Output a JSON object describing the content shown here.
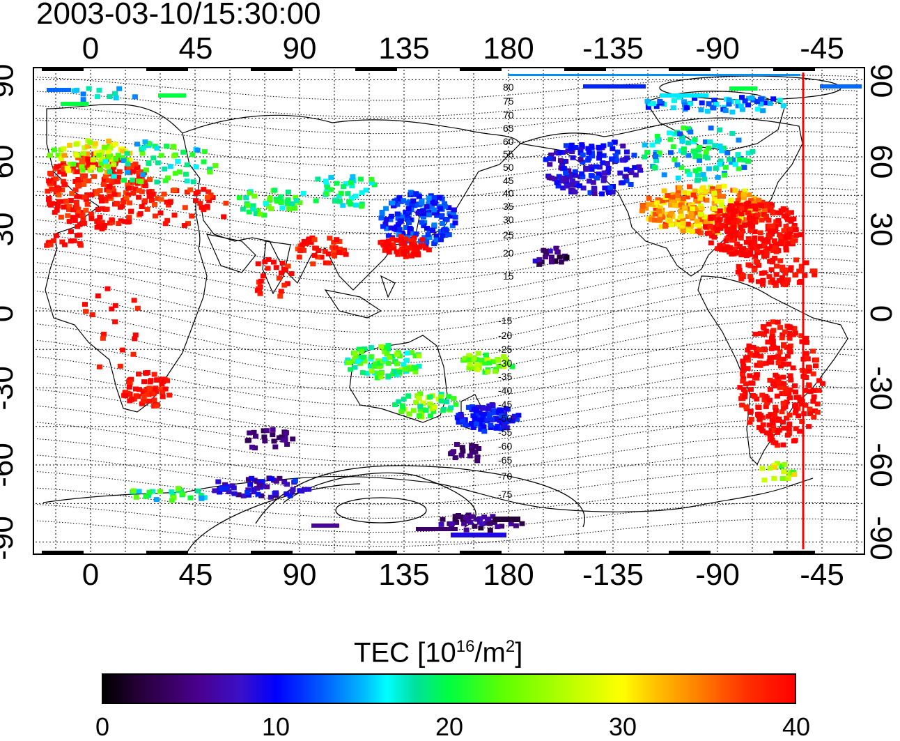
{
  "timestamp": "2003-03-10/15:30:00",
  "x_ticks": [
    "0",
    "45",
    "90",
    "135",
    "180",
    "-135",
    "-90",
    "-45"
  ],
  "y_ticks_left": [
    "90",
    "60",
    "30",
    "0",
    "-30",
    "-60",
    "-90"
  ],
  "y_ticks_right": [
    "90",
    "60",
    "30",
    "0",
    "-30",
    "-60",
    "-90"
  ],
  "contour_labels": [
    "80",
    "75",
    "70",
    "65",
    "60",
    "55",
    "50",
    "45",
    "40",
    "35",
    "30",
    "25",
    "20",
    "15",
    "-15",
    "-20",
    "-25",
    "-30",
    "-35",
    "-40",
    "-45",
    "-50",
    "-55",
    "-60",
    "-65",
    "-70",
    "-75"
  ],
  "colorbar": {
    "title_text": "TEC  [10",
    "title_sup1": "16",
    "title_mid": "/m",
    "title_sup2": "2",
    "title_end": "]",
    "ticks": [
      "0",
      "10",
      "20",
      "30",
      "40"
    ],
    "range": [
      0,
      40
    ]
  },
  "colors": {
    "marker_line": "#ff0000",
    "high_tec": "#ff0000"
  }
}
